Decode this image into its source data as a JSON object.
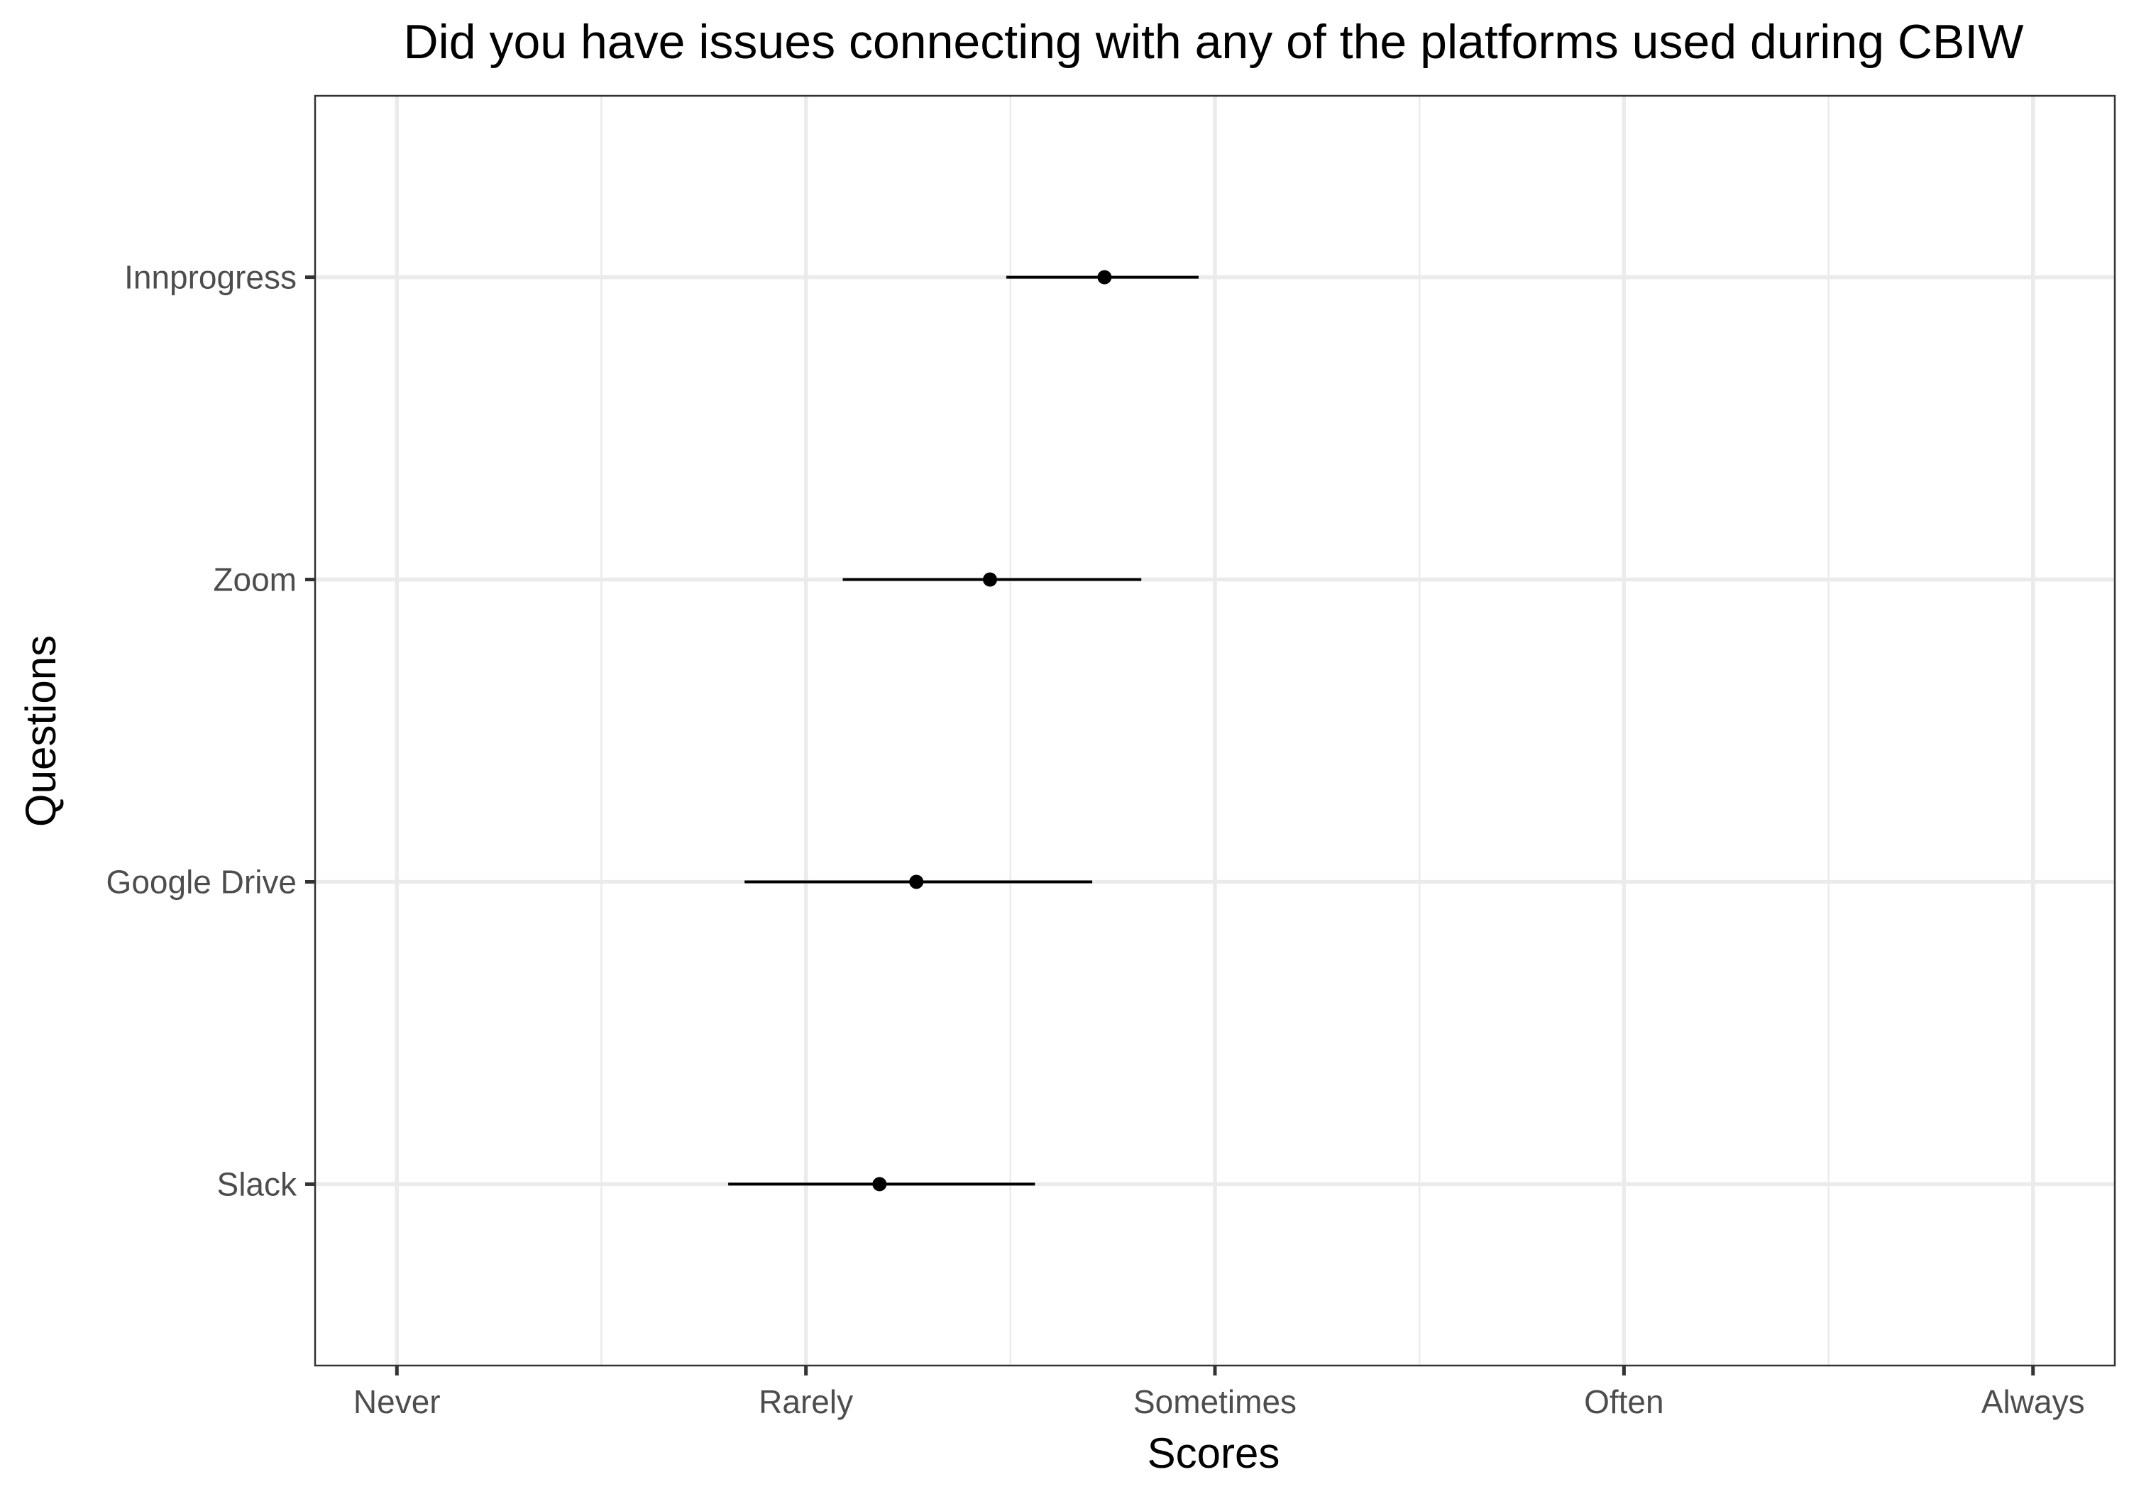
{
  "chart_data": {
    "type": "scatter",
    "subtype": "point-range",
    "title": "Did you have issues connecting with any of the platforms used during CBIW",
    "xlabel": "Scores",
    "ylabel": "Questions",
    "x_scale": {
      "levels": [
        "Never",
        "Rarely",
        "Sometimes",
        "Often",
        "Always"
      ],
      "values": [
        1,
        2,
        3,
        4,
        5
      ],
      "xlim": [
        0.8,
        5.2
      ]
    },
    "categories": [
      "Slack",
      "Google Drive",
      "Zoom",
      "Innprogress"
    ],
    "series": [
      {
        "points": [
          {
            "label": "Slack",
            "mean": 2.18,
            "low": 1.81,
            "high": 2.56
          },
          {
            "label": "Google Drive",
            "mean": 2.27,
            "low": 1.85,
            "high": 2.7
          },
          {
            "label": "Zoom",
            "mean": 2.45,
            "low": 2.09,
            "high": 2.82
          },
          {
            "label": "Innprogress",
            "mean": 2.73,
            "low": 2.49,
            "high": 2.96
          }
        ]
      }
    ],
    "grid": true,
    "legend": "none"
  }
}
